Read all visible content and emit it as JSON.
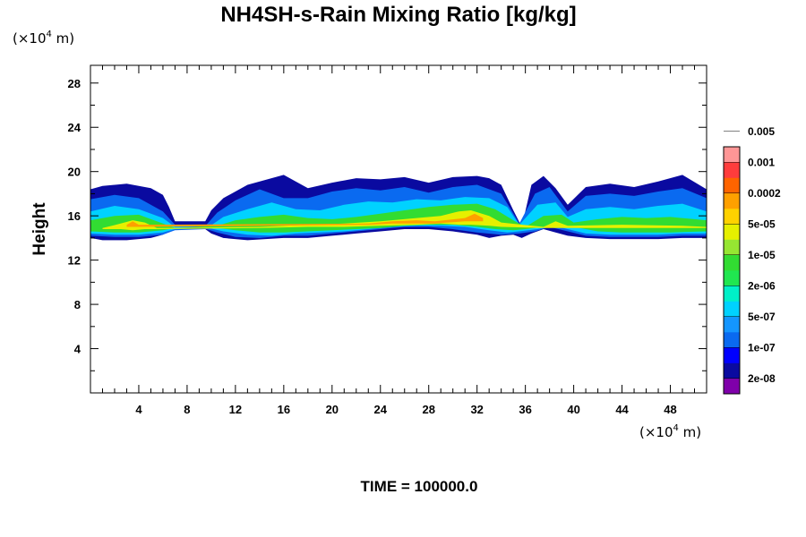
{
  "chart_data": {
    "type": "heatmap",
    "title": "NH4SH-s-Rain Mixing Ratio [kg/kg]",
    "ylabel": "Height",
    "x_unit": {
      "prefix": "(×10",
      "exp": "4",
      "suffix": " m)"
    },
    "y_unit": {
      "prefix": "(×10",
      "exp": "4",
      "suffix": " m)"
    },
    "xlim": [
      0,
      51
    ],
    "ylim": [
      0,
      29.6
    ],
    "x_ticks": [
      "4",
      "8",
      "12",
      "16",
      "20",
      "24",
      "28",
      "32",
      "36",
      "40",
      "44",
      "48"
    ],
    "x_tick_values": [
      4,
      8,
      12,
      16,
      20,
      24,
      28,
      32,
      36,
      40,
      44,
      48
    ],
    "y_ticks": [
      "4",
      "8",
      "12",
      "16",
      "20",
      "24",
      "28"
    ],
    "y_tick_values": [
      4,
      8,
      12,
      16,
      20,
      24,
      28
    ],
    "footer": "TIME = 100000.0",
    "colorbar": {
      "levels": [
        "2e-08",
        "1e-07",
        "5e-07",
        "2e-06",
        "1e-05",
        "5e-05",
        "0.0002",
        "0.001",
        "0.005"
      ],
      "colors": [
        "#7f00aa",
        "#0a0aa0",
        "#0000ff",
        "#0a6af0",
        "#1496ff",
        "#00d2ff",
        "#00f0c8",
        "#20e650",
        "#32dc32",
        "#96e632",
        "#e6f000",
        "#ffd200",
        "#ffa000",
        "#ff6400",
        "#ff3c3c",
        "#ff9696"
      ]
    },
    "bands": [
      {
        "name": "envelope",
        "color_index": 1,
        "x": [
          0,
          1,
          3,
          5,
          6,
          6.5,
          7,
          9.5,
          10,
          11,
          13,
          16,
          18,
          20,
          22,
          24,
          26,
          28,
          30,
          32,
          33,
          34,
          35,
          35.7,
          36.5,
          37.5,
          38.5,
          39.5,
          41,
          43,
          45,
          47,
          49,
          51
        ],
        "top": [
          18.4,
          18.7,
          18.9,
          18.5,
          17.9,
          16.8,
          15.5,
          15.5,
          16.5,
          17.6,
          18.8,
          19.7,
          18.5,
          19.0,
          19.4,
          19.3,
          19.5,
          19.0,
          19.5,
          19.6,
          19.4,
          18.8,
          16.5,
          15.0,
          18.8,
          19.6,
          18.5,
          17.0,
          18.6,
          18.9,
          18.6,
          19.1,
          19.7,
          18.4
        ],
        "bottom": [
          14.0,
          13.8,
          13.8,
          14.0,
          14.3,
          14.6,
          14.8,
          14.8,
          14.4,
          14.0,
          13.8,
          14.0,
          14.0,
          14.2,
          14.4,
          14.6,
          14.8,
          14.8,
          14.6,
          14.3,
          14.0,
          14.2,
          14.3,
          14.0,
          14.4,
          14.8,
          14.5,
          14.2,
          14.0,
          13.9,
          13.9,
          13.9,
          14.0,
          14.0
        ]
      },
      {
        "name": "layer-blue",
        "color_index": 3,
        "x": [
          0,
          2,
          4,
          6,
          7,
          9.6,
          10.5,
          12,
          14,
          16,
          18,
          20,
          22,
          24,
          26,
          28,
          30,
          32,
          34,
          35.5,
          36.8,
          38,
          39.5,
          41,
          43,
          45,
          47,
          49,
          51
        ],
        "top": [
          17.5,
          17.9,
          17.6,
          16.4,
          15.2,
          15.2,
          16.3,
          17.4,
          18.4,
          17.6,
          17.6,
          18.2,
          18.5,
          18.3,
          18.6,
          18.1,
          18.6,
          18.8,
          18.0,
          15.3,
          18.0,
          18.6,
          16.4,
          17.8,
          18.0,
          17.8,
          18.2,
          18.5,
          17.6
        ],
        "bottom": [
          14.2,
          14.1,
          14.1,
          14.3,
          14.7,
          14.8,
          14.5,
          14.1,
          14.0,
          14.2,
          14.2,
          14.4,
          14.6,
          14.8,
          15.0,
          15.0,
          14.8,
          14.5,
          14.3,
          14.4,
          14.6,
          15.0,
          14.6,
          14.2,
          14.1,
          14.1,
          14.1,
          14.2,
          14.2
        ]
      },
      {
        "name": "layer-cyan",
        "color_index": 5,
        "x": [
          0,
          2,
          4,
          6,
          7,
          9.8,
          11,
          13,
          15,
          17,
          19,
          21,
          23,
          25,
          27,
          29,
          31,
          33,
          34.5,
          35.5,
          37,
          38.5,
          39.5,
          41,
          43,
          45,
          47,
          49,
          51
        ],
        "top": [
          16.4,
          16.9,
          16.6,
          15.8,
          15.0,
          15.0,
          15.9,
          16.6,
          17.2,
          16.6,
          16.5,
          17.0,
          17.3,
          17.2,
          17.5,
          17.4,
          17.7,
          17.6,
          16.8,
          15.2,
          17.0,
          17.2,
          15.9,
          16.6,
          16.8,
          16.6,
          16.9,
          17.1,
          16.4
        ],
        "bottom": [
          14.4,
          14.3,
          14.3,
          14.5,
          14.8,
          14.9,
          14.6,
          14.3,
          14.2,
          14.4,
          14.5,
          14.6,
          14.8,
          15.0,
          15.1,
          15.1,
          15.0,
          14.7,
          14.5,
          14.6,
          14.8,
          15.1,
          14.8,
          14.4,
          14.3,
          14.3,
          14.3,
          14.4,
          14.4
        ]
      },
      {
        "name": "layer-green",
        "color_index": 8,
        "x": [
          0,
          2,
          4,
          6,
          7,
          10.5,
          12,
          14,
          16,
          18,
          20,
          22,
          24,
          26,
          28,
          30,
          32,
          33.5,
          35,
          36,
          37.5,
          39,
          40,
          42,
          44,
          46,
          48,
          51
        ],
        "top": [
          15.6,
          16.0,
          16.1,
          15.3,
          14.9,
          15.1,
          15.6,
          15.9,
          16.1,
          15.8,
          15.7,
          15.9,
          16.2,
          16.5,
          16.8,
          17.0,
          17.1,
          16.6,
          15.6,
          15.0,
          16.0,
          16.1,
          15.4,
          15.7,
          15.9,
          15.8,
          15.9,
          15.6
        ],
        "bottom": [
          14.6,
          14.5,
          14.5,
          14.7,
          14.9,
          14.9,
          14.7,
          14.5,
          14.5,
          14.6,
          14.7,
          14.8,
          14.9,
          15.1,
          15.2,
          15.2,
          15.0,
          14.8,
          14.7,
          14.8,
          15.0,
          15.2,
          15.0,
          14.6,
          14.5,
          14.5,
          14.5,
          14.6
        ]
      },
      {
        "name": "layer-yellow",
        "color_index": 10,
        "x": [
          1,
          2.5,
          3.5,
          4.5,
          5.5,
          14,
          18,
          21,
          24,
          27,
          29,
          30.5,
          31.5,
          33,
          34,
          37.5,
          38.5,
          39.5,
          44,
          49,
          51
        ],
        "top": [
          14.9,
          15.3,
          15.6,
          15.4,
          14.9,
          15.0,
          15.2,
          15.3,
          15.5,
          15.8,
          16.0,
          16.4,
          16.5,
          16.0,
          15.4,
          15.0,
          15.5,
          15.1,
          15.2,
          15.1,
          15.0
        ],
        "bottom": [
          14.8,
          14.8,
          14.7,
          14.8,
          14.8,
          14.9,
          15.0,
          15.0,
          15.1,
          15.2,
          15.3,
          15.2,
          15.2,
          15.1,
          15.0,
          14.9,
          14.9,
          14.9,
          14.9,
          14.9,
          14.9
        ]
      },
      {
        "name": "layer-orange",
        "color_index": 12,
        "x": [
          3.0,
          3.5,
          4.0,
          23,
          25,
          27,
          28.5,
          31.0,
          31.8,
          32.5
        ],
        "top": [
          15.2,
          15.5,
          15.2,
          15.3,
          15.5,
          15.6,
          15.5,
          15.8,
          16.2,
          15.8
        ],
        "bottom": [
          15.0,
          15.0,
          15.0,
          15.2,
          15.3,
          15.3,
          15.3,
          15.5,
          15.5,
          15.5
        ]
      }
    ]
  }
}
